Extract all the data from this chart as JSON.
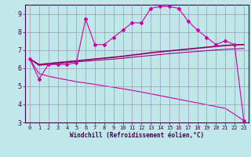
{
  "x": [
    0,
    1,
    2,
    3,
    4,
    5,
    6,
    7,
    8,
    9,
    10,
    11,
    12,
    13,
    14,
    15,
    16,
    17,
    18,
    19,
    20,
    21,
    22,
    23
  ],
  "line1_jagged": [
    6.5,
    5.4,
    6.2,
    6.2,
    6.2,
    6.3,
    8.7,
    7.3,
    7.3,
    7.7,
    8.1,
    8.5,
    8.5,
    9.3,
    9.4,
    9.4,
    9.3,
    8.6,
    8.1,
    7.7,
    7.3,
    7.5,
    7.3,
    3.1
  ],
  "line2_upper": [
    6.5,
    6.2,
    6.25,
    6.3,
    6.35,
    6.4,
    6.45,
    6.5,
    6.55,
    6.6,
    6.65,
    6.72,
    6.78,
    6.85,
    6.9,
    6.95,
    7.0,
    7.05,
    7.1,
    7.15,
    7.2,
    7.25,
    7.28,
    7.3
  ],
  "line3_mid": [
    6.5,
    6.15,
    6.2,
    6.25,
    6.3,
    6.35,
    6.38,
    6.42,
    6.46,
    6.5,
    6.54,
    6.6,
    6.65,
    6.7,
    6.75,
    6.8,
    6.84,
    6.88,
    6.92,
    6.96,
    7.0,
    7.04,
    7.06,
    7.08
  ],
  "line4_lower": [
    6.5,
    5.7,
    5.55,
    5.45,
    5.35,
    5.25,
    5.18,
    5.1,
    5.02,
    4.94,
    4.86,
    4.77,
    4.68,
    4.58,
    4.48,
    4.38,
    4.28,
    4.18,
    4.08,
    3.98,
    3.88,
    3.78,
    3.45,
    3.1
  ],
  "bg_color": "#c0e8e8",
  "grid_color": "#9999bb",
  "line_color_jagged": "#cc00aa",
  "line_color_upper": "#880066",
  "line_color_mid": "#aa0088",
  "line_color_lower": "#cc00aa",
  "xlabel": "Windchill (Refroidissement éolien,°C)",
  "xlim": [
    -0.5,
    23.5
  ],
  "ylim": [
    3,
    9.5
  ],
  "yticks": [
    3,
    4,
    5,
    6,
    7,
    8,
    9
  ],
  "xticks": [
    0,
    1,
    2,
    3,
    4,
    5,
    6,
    7,
    8,
    9,
    10,
    11,
    12,
    13,
    14,
    15,
    16,
    17,
    18,
    19,
    20,
    21,
    22,
    23
  ],
  "tick_fontsize": 5,
  "xlabel_fontsize": 5.5,
  "marker": "D",
  "markersize": 2.0
}
